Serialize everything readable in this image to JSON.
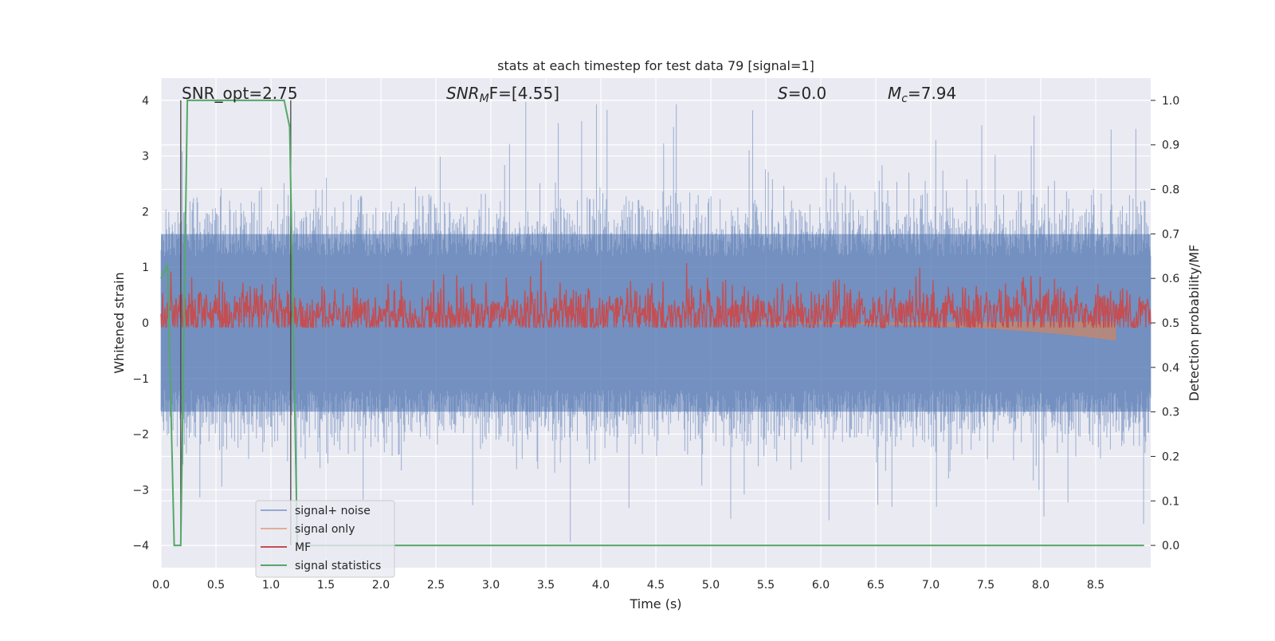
{
  "chart_data": {
    "type": "line",
    "title": "stats at each timestep for test data 79 [signal=1]",
    "xlabel": "Time (s)",
    "ylabel_left": "Whitened strain",
    "ylabel_right": "Detection probability/MF",
    "xlim": [
      0.0,
      9.0
    ],
    "ylim_left": [
      -4.4,
      4.4
    ],
    "ylim_right": [
      -0.05,
      1.05
    ],
    "grid": true,
    "legend_position": "lower-left",
    "x_ticks": [
      "0.0",
      "0.5",
      "1.0",
      "1.5",
      "2.0",
      "2.5",
      "3.0",
      "3.5",
      "4.0",
      "4.5",
      "5.0",
      "5.5",
      "6.0",
      "6.5",
      "7.0",
      "7.5",
      "8.0",
      "8.5"
    ],
    "y_ticks_left": [
      "4",
      "3",
      "2",
      "1",
      "0",
      "−1",
      "−2",
      "−3",
      "−4"
    ],
    "y_ticks_right": [
      "1.0",
      "0.9",
      "0.8",
      "0.7",
      "0.6",
      "0.5",
      "0.4",
      "0.3",
      "0.2",
      "0.1",
      "0.0"
    ],
    "annotations": {
      "snr_opt": "SNR_opt=2.75",
      "snr_mf_prefix": "SNR",
      "snr_mf_sub": "M",
      "snr_mf_rest": "F=[4.55]",
      "s_var": "S",
      "s_val": "=0.0",
      "mc_var": "M",
      "mc_sub": "c",
      "mc_val": "=7.94"
    },
    "vertical_markers": [
      0.18,
      1.18
    ],
    "series": [
      {
        "name": "signal+ noise",
        "color": "#4c72b0",
        "typical_range": [
          -1.5,
          1.5
        ],
        "extreme_range": [
          -4.0,
          4.0
        ]
      },
      {
        "name": "signal only",
        "color": "#dd8452",
        "chirp_end_time": 8.68,
        "chirp_end_amplitude": [
          -0.3,
          0.0
        ]
      },
      {
        "name": "MF",
        "color": "#c44e52",
        "typical_range": [
          0.1,
          0.6
        ],
        "peak": 0.99
      },
      {
        "name": "signal statistics",
        "color": "#55a868",
        "x": [
          0.0,
          0.06,
          0.12,
          0.18,
          0.24,
          0.3,
          1.0,
          1.12,
          1.17,
          1.24,
          1.3,
          8.94
        ],
        "y": [
          0.6,
          0.63,
          0.0,
          0.0,
          1.0,
          1.0,
          1.0,
          1.0,
          0.94,
          0.0,
          0.0,
          0.0
        ]
      }
    ]
  }
}
